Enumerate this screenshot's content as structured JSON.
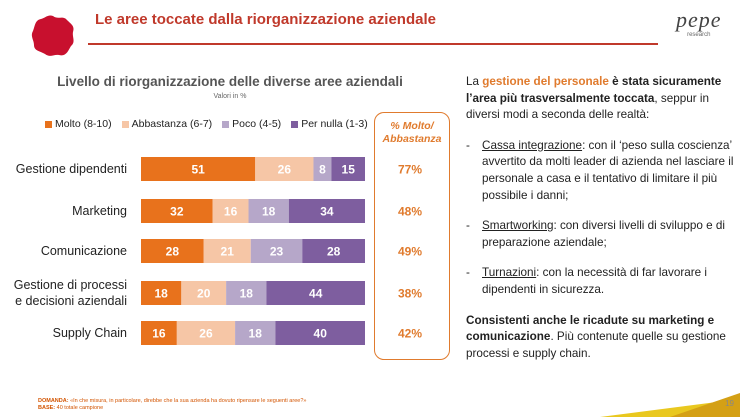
{
  "header": {
    "title": "Le aree toccate dalla riorganizzazione aziendale",
    "brand": "pepe",
    "brand_sub": "research"
  },
  "colors": {
    "accent": "#c0392b",
    "molto": "#e8721c",
    "abbastanza": "#f6c6a6",
    "poco": "#b6a7c9",
    "per_nulla": "#7e5e9f",
    "pct": "#e07b2e"
  },
  "chart_data": {
    "type": "bar",
    "orientation": "horizontal",
    "stacked": true,
    "title": "Livello di riorganizzazione delle diverse aree aziendali",
    "subtitle": "Valori in %",
    "categories": [
      [
        "Gestione dipendenti"
      ],
      [
        "Marketing"
      ],
      [
        "Comunicazione"
      ],
      [
        "Gestione di processi",
        "e decisioni aziendali"
      ],
      [
        "Supply Chain"
      ]
    ],
    "series": [
      {
        "name": "Molto (8-10)",
        "values": [
          51,
          32,
          28,
          18,
          16
        ]
      },
      {
        "name": "Abbastanza (6-7)",
        "values": [
          26,
          16,
          21,
          20,
          26
        ]
      },
      {
        "name": "Poco (4-5)",
        "values": [
          8,
          18,
          23,
          18,
          18
        ]
      },
      {
        "name": "Per nulla (1-3)",
        "values": [
          15,
          34,
          28,
          44,
          40
        ]
      }
    ],
    "pct_title": [
      "% Molto/",
      "Abbastanza"
    ],
    "pct_values": [
      "77%",
      "48%",
      "49%",
      "38%",
      "42%"
    ]
  },
  "commentary": {
    "intro_pre": "La ",
    "intro_highlight": "gestione del personale",
    "intro_bold": " è stata sicuramente l’area più trasversalmente toccata",
    "intro_rest": ", seppur in diversi modi a seconda delle realtà:",
    "bullets": [
      {
        "dash": "-",
        "term": "Cassa integrazione",
        "text": ": con il ‘peso sulla coscienza’ avvertito da molti leader di azienda nel lasciare il personale a casa e il tentativo di limitare il  più possibile i danni;"
      },
      {
        "dash": "-",
        "term": "Smartworking",
        "text": ": con diversi livelli di sviluppo e di preparazione aziendale;"
      },
      {
        "dash": "-",
        "term": "Turnazioni",
        "text": ": con la necessità di far lavorare i dipendenti in sicurezza."
      }
    ],
    "closing_bold": "Consistenti anche le ricadute su marketing e comunicazione",
    "closing_rest": ". Più contenute quelle su gestione processi e supply chain."
  },
  "footer": {
    "domanda_label": "DOMANDA:",
    "domanda_text": " «In che misura, in particolare, direbbe che la sua azienda ha dovuto ripensare le seguenti aree?»",
    "base_label": "BASE:",
    "base_text": " 40 totale campione",
    "page_number": "19"
  }
}
